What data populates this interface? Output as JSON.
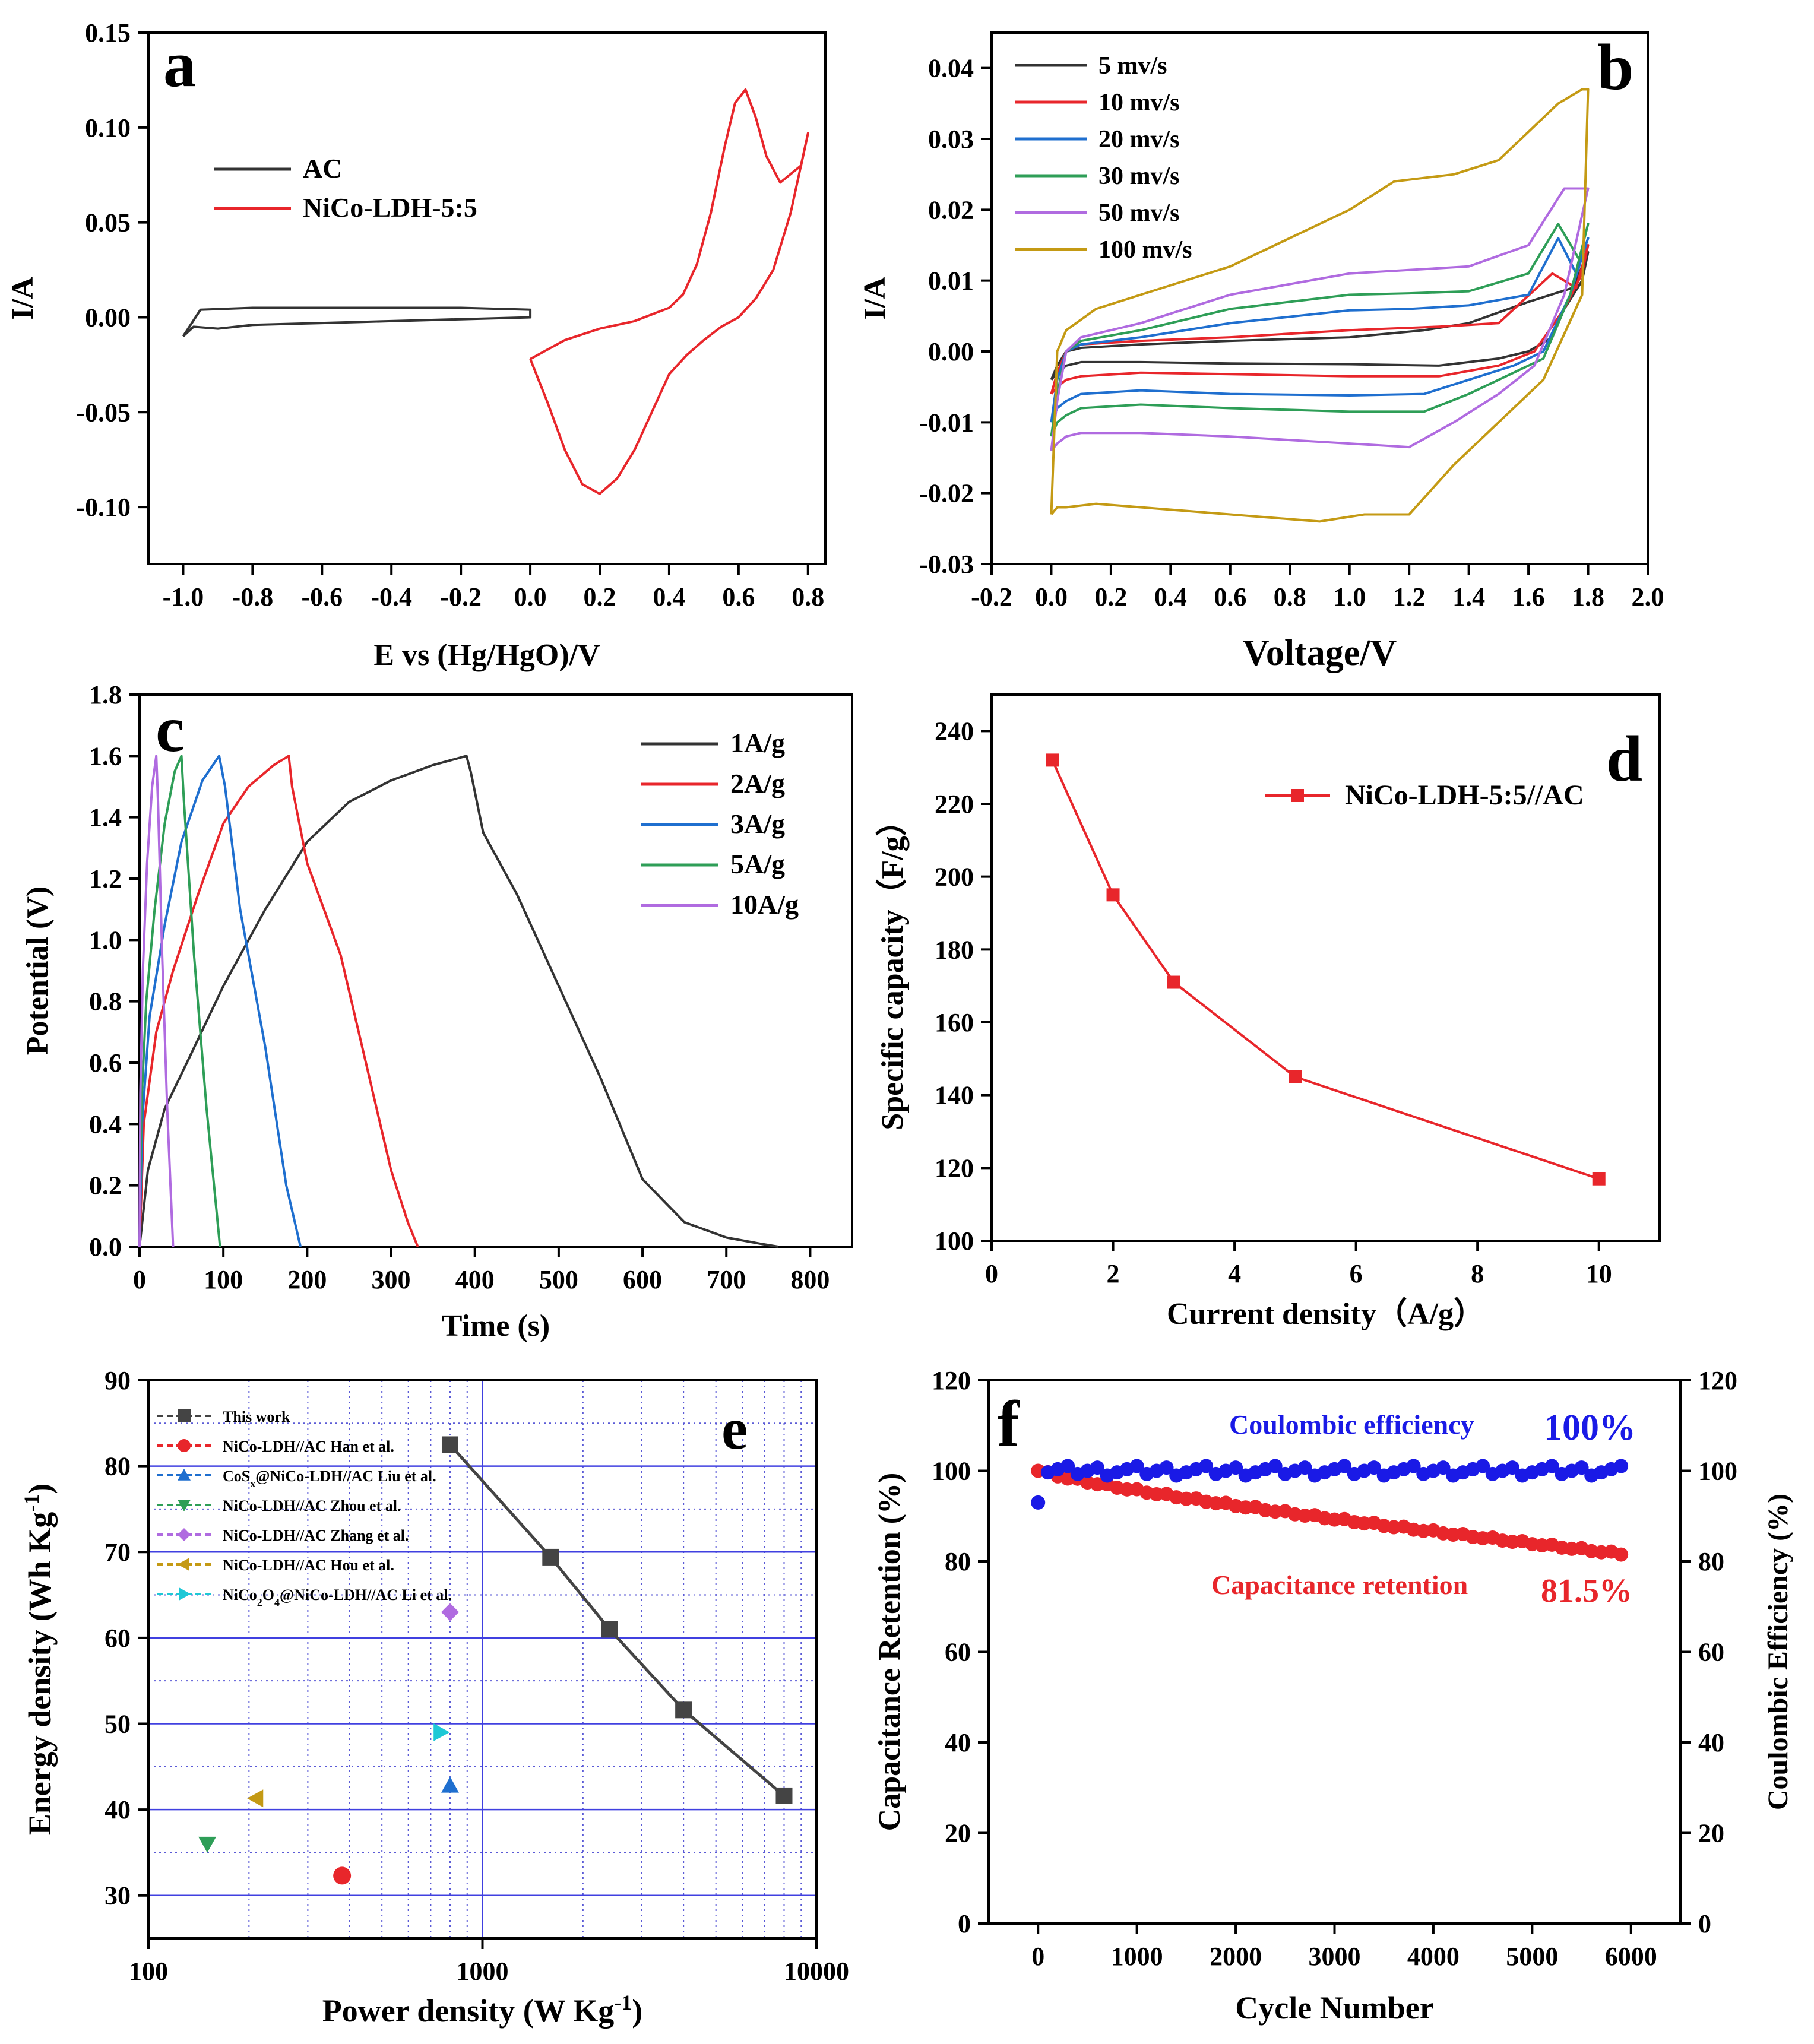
{
  "chart_data": [
    {
      "panel": "a",
      "type": "line",
      "title": "",
      "xlabel": "E vs (Hg/HgO)/V",
      "ylabel": "I/A",
      "xlim": [
        -1.1,
        0.85
      ],
      "ylim": [
        -0.13,
        0.15
      ],
      "xticks": [
        -1.0,
        -0.8,
        -0.6,
        -0.4,
        -0.2,
        0.0,
        0.2,
        0.4,
        0.6,
        0.8
      ],
      "xtick_labels": [
        "-1.0",
        "-0.8",
        "-0.6",
        "-0.4",
        "-0.2",
        "0.0",
        "0.2",
        "0.4",
        "0.6",
        "0.8"
      ],
      "yticks": [
        -0.1,
        -0.05,
        0.0,
        0.05,
        0.1,
        0.15
      ],
      "ytick_labels": [
        "-0.10",
        "-0.05",
        "0.00",
        "0.05",
        "0.10",
        "0.15"
      ],
      "legend_position": "upper-left",
      "series": [
        {
          "name": "AC",
          "color": "#333333",
          "x": [
            -1.0,
            -0.97,
            -0.9,
            -0.8,
            -0.6,
            -0.4,
            -0.2,
            0.0,
            0.0,
            -0.2,
            -0.4,
            -0.6,
            -0.8,
            -0.95,
            -1.0
          ],
          "y": [
            -0.01,
            -0.005,
            -0.006,
            -0.004,
            -0.003,
            -0.002,
            -0.001,
            0.0,
            0.004,
            0.005,
            0.005,
            0.005,
            0.005,
            0.004,
            -0.01
          ]
        },
        {
          "name": "NiCo-LDH-5:5",
          "color": "#e8262b",
          "x": [
            0.0,
            0.05,
            0.1,
            0.15,
            0.2,
            0.25,
            0.3,
            0.35,
            0.4,
            0.45,
            0.5,
            0.55,
            0.6,
            0.65,
            0.7,
            0.75,
            0.8,
            0.78,
            0.72,
            0.68,
            0.65,
            0.62,
            0.59,
            0.56,
            0.52,
            0.48,
            0.44,
            0.4,
            0.3,
            0.2,
            0.1,
            0.0
          ],
          "y": [
            -0.022,
            -0.045,
            -0.07,
            -0.088,
            -0.093,
            -0.085,
            -0.07,
            -0.05,
            -0.03,
            -0.02,
            -0.012,
            -0.005,
            0.0,
            0.01,
            0.025,
            0.055,
            0.097,
            0.08,
            0.071,
            0.085,
            0.105,
            0.12,
            0.113,
            0.09,
            0.055,
            0.028,
            0.012,
            0.005,
            -0.002,
            -0.006,
            -0.012,
            -0.022
          ]
        }
      ],
      "annotation": "a"
    },
    {
      "panel": "b",
      "type": "line",
      "xlabel": "Voltage/V",
      "ylabel": "I/A",
      "xlim": [
        -0.2,
        2.0
      ],
      "ylim": [
        -0.03,
        0.045
      ],
      "xticks": [
        -0.2,
        0.0,
        0.2,
        0.4,
        0.6,
        0.8,
        1.0,
        1.2,
        1.4,
        1.6,
        1.8,
        2.0
      ],
      "xtick_labels": [
        "-0.2",
        "0.0",
        "0.2",
        "0.4",
        "0.6",
        "0.8",
        "1.0",
        "1.2",
        "1.4",
        "1.6",
        "1.8",
        "2.0"
      ],
      "yticks": [
        -0.03,
        -0.02,
        -0.01,
        0.0,
        0.01,
        0.02,
        0.03,
        0.04
      ],
      "ytick_labels": [
        "-0.03",
        "-0.02",
        "-0.01",
        "0.00",
        "0.01",
        "0.02",
        "0.03",
        "0.04"
      ],
      "legend_position": "upper-left",
      "series": [
        {
          "name": "5 mv/s",
          "color": "#333333",
          "x": [
            0.0,
            0.02,
            0.05,
            0.1,
            0.3,
            0.6,
            1.0,
            1.3,
            1.5,
            1.6,
            1.68,
            1.72,
            1.78,
            1.8,
            1.75,
            1.6,
            1.4,
            1.25,
            1.0,
            0.6,
            0.3,
            0.1,
            0.05,
            0.02,
            0.0
          ],
          "y": [
            -0.004,
            -0.003,
            -0.002,
            -0.0015,
            -0.0015,
            -0.0017,
            -0.0018,
            -0.002,
            -0.001,
            0.0,
            0.002,
            0.006,
            0.01,
            0.014,
            0.009,
            0.007,
            0.004,
            0.003,
            0.002,
            0.0015,
            0.001,
            0.0005,
            0.0,
            -0.002,
            -0.004
          ]
        },
        {
          "name": "10 mv/s",
          "color": "#e8262b",
          "x": [
            0.0,
            0.02,
            0.05,
            0.1,
            0.3,
            0.6,
            1.0,
            1.3,
            1.5,
            1.62,
            1.72,
            1.78,
            1.8,
            1.76,
            1.68,
            1.5,
            1.3,
            1.0,
            0.6,
            0.3,
            0.1,
            0.05,
            0.02,
            0.0
          ],
          "y": [
            -0.006,
            -0.005,
            -0.004,
            -0.0035,
            -0.003,
            -0.0032,
            -0.0035,
            -0.0035,
            -0.002,
            0.0,
            0.006,
            0.011,
            0.015,
            0.009,
            0.011,
            0.004,
            0.0035,
            0.003,
            0.002,
            0.0015,
            0.001,
            0.0,
            -0.003,
            -0.006
          ]
        },
        {
          "name": "20 mv/s",
          "color": "#1f6fcf",
          "x": [
            0.0,
            0.02,
            0.05,
            0.1,
            0.3,
            0.6,
            1.0,
            1.25,
            1.4,
            1.55,
            1.65,
            1.74,
            1.8,
            1.76,
            1.7,
            1.6,
            1.4,
            1.2,
            1.0,
            0.6,
            0.3,
            0.1,
            0.05,
            0.02,
            0.0
          ],
          "y": [
            -0.01,
            -0.008,
            -0.007,
            -0.006,
            -0.0055,
            -0.006,
            -0.0062,
            -0.006,
            -0.004,
            -0.002,
            0.0,
            0.008,
            0.016,
            0.011,
            0.016,
            0.008,
            0.0065,
            0.006,
            0.0058,
            0.004,
            0.002,
            0.001,
            0.0,
            -0.004,
            -0.01
          ]
        },
        {
          "name": "30 mv/s",
          "color": "#2e9e57",
          "x": [
            0.0,
            0.02,
            0.05,
            0.1,
            0.3,
            0.6,
            1.0,
            1.25,
            1.4,
            1.55,
            1.65,
            1.74,
            1.8,
            1.77,
            1.7,
            1.6,
            1.4,
            1.2,
            1.0,
            0.6,
            0.3,
            0.1,
            0.05,
            0.02,
            0.0
          ],
          "y": [
            -0.012,
            -0.01,
            -0.009,
            -0.008,
            -0.0075,
            -0.008,
            -0.0085,
            -0.0085,
            -0.006,
            -0.003,
            -0.001,
            0.008,
            0.018,
            0.013,
            0.018,
            0.011,
            0.0085,
            0.0082,
            0.008,
            0.006,
            0.003,
            0.0015,
            0.0,
            -0.006,
            -0.012
          ]
        },
        {
          "name": "50 mv/s",
          "color": "#b06be0",
          "x": [
            0.0,
            0.02,
            0.05,
            0.1,
            0.3,
            0.6,
            1.0,
            1.2,
            1.35,
            1.5,
            1.62,
            1.72,
            1.8,
            1.78,
            1.72,
            1.6,
            1.4,
            1.2,
            1.0,
            0.6,
            0.3,
            0.1,
            0.05,
            0.02,
            0.0
          ],
          "y": [
            -0.014,
            -0.013,
            -0.012,
            -0.0115,
            -0.0115,
            -0.012,
            -0.013,
            -0.0135,
            -0.01,
            -0.006,
            -0.002,
            0.008,
            0.023,
            0.023,
            0.023,
            0.015,
            0.012,
            0.0115,
            0.011,
            0.008,
            0.004,
            0.002,
            0.0,
            -0.007,
            -0.014
          ]
        },
        {
          "name": "100 mv/s",
          "color": "#c49a14",
          "x": [
            0.0,
            0.02,
            0.05,
            0.15,
            0.3,
            0.6,
            0.9,
            1.05,
            1.2,
            1.35,
            1.5,
            1.65,
            1.78,
            1.8,
            1.78,
            1.7,
            1.5,
            1.35,
            1.15,
            1.0,
            0.6,
            0.3,
            0.15,
            0.05,
            0.02,
            0.0
          ],
          "y": [
            -0.023,
            -0.022,
            -0.022,
            -0.0215,
            -0.022,
            -0.023,
            -0.024,
            -0.023,
            -0.023,
            -0.016,
            -0.01,
            -0.004,
            0.008,
            0.037,
            0.037,
            0.035,
            0.027,
            0.025,
            0.024,
            0.02,
            0.012,
            0.008,
            0.006,
            0.003,
            0.0,
            -0.023
          ]
        }
      ],
      "annotation": "b"
    },
    {
      "panel": "c",
      "type": "line",
      "xlabel": "Time (s)",
      "ylabel": "Potential (V)",
      "xlim": [
        0,
        850
      ],
      "ylim": [
        0.0,
        1.8
      ],
      "xticks": [
        0,
        100,
        200,
        300,
        400,
        500,
        600,
        700,
        800
      ],
      "xtick_labels": [
        "0",
        "100",
        "200",
        "300",
        "400",
        "500",
        "600",
        "700",
        "800"
      ],
      "yticks": [
        0.0,
        0.2,
        0.4,
        0.6,
        0.8,
        1.0,
        1.2,
        1.4,
        1.6,
        1.8
      ],
      "ytick_labels": [
        "0.0",
        "0.2",
        "0.4",
        "0.6",
        "0.8",
        "1.0",
        "1.2",
        "1.4",
        "1.6",
        "1.8"
      ],
      "legend_position": "upper-right",
      "series": [
        {
          "name": "1A/g",
          "color": "#333333",
          "x": [
            0,
            10,
            30,
            60,
            100,
            150,
            200,
            250,
            300,
            350,
            390,
            395,
            410,
            450,
            500,
            550,
            600,
            650,
            700,
            740,
            762
          ],
          "y": [
            0.0,
            0.25,
            0.45,
            0.62,
            0.85,
            1.1,
            1.32,
            1.45,
            1.52,
            1.57,
            1.6,
            1.55,
            1.35,
            1.15,
            0.85,
            0.55,
            0.22,
            0.08,
            0.03,
            0.01,
            0.0
          ]
        },
        {
          "name": "2A/g",
          "color": "#e8262b",
          "x": [
            0,
            5,
            20,
            40,
            70,
            100,
            130,
            160,
            178,
            182,
            200,
            240,
            270,
            300,
            320,
            332
          ],
          "y": [
            0.0,
            0.4,
            0.7,
            0.9,
            1.15,
            1.38,
            1.5,
            1.57,
            1.6,
            1.5,
            1.25,
            0.95,
            0.6,
            0.25,
            0.08,
            0.0
          ]
        },
        {
          "name": "3A/g",
          "color": "#1f6fcf",
          "x": [
            0,
            3,
            12,
            30,
            50,
            75,
            95,
            102,
            120,
            150,
            175,
            192
          ],
          "y": [
            0.0,
            0.4,
            0.75,
            1.05,
            1.32,
            1.52,
            1.6,
            1.5,
            1.1,
            0.65,
            0.2,
            0.0
          ]
        },
        {
          "name": "5A/g",
          "color": "#2e9e57",
          "x": [
            0,
            2,
            8,
            18,
            30,
            42,
            50,
            53,
            65,
            80,
            96
          ],
          "y": [
            0.0,
            0.45,
            0.8,
            1.1,
            1.38,
            1.55,
            1.6,
            1.45,
            0.95,
            0.45,
            0.0
          ]
        },
        {
          "name": "10A/g",
          "color": "#b06be0",
          "x": [
            0,
            1,
            4,
            9,
            15,
            20,
            22,
            27,
            33,
            40
          ],
          "y": [
            0.0,
            0.5,
            0.9,
            1.25,
            1.5,
            1.6,
            1.45,
            0.95,
            0.45,
            0.0
          ]
        }
      ],
      "annotation": "c"
    },
    {
      "panel": "d",
      "type": "line",
      "xlabel": "Current density（A/g）",
      "ylabel": "Specific capacity（F/g）",
      "xlim": [
        0,
        11
      ],
      "ylim": [
        100,
        250
      ],
      "xticks": [
        0,
        2,
        4,
        6,
        8,
        10
      ],
      "xtick_labels": [
        "0",
        "2",
        "4",
        "6",
        "8",
        "10"
      ],
      "yticks": [
        100,
        120,
        140,
        160,
        180,
        200,
        220,
        240
      ],
      "ytick_labels": [
        "100",
        "120",
        "140",
        "160",
        "180",
        "200",
        "220",
        "240"
      ],
      "legend_position": "upper-right",
      "series": [
        {
          "name": "NiCo-LDH-5:5//AC",
          "color": "#e8262b",
          "marker": "square",
          "x": [
            1,
            2,
            3,
            5,
            10
          ],
          "y": [
            232,
            195,
            171,
            145,
            117
          ]
        }
      ],
      "annotation": "d"
    },
    {
      "panel": "e",
      "type": "scatter",
      "xlabel": "Power density (W Kg",
      "xlabel_sup": "-1",
      "xlabel_tail": ")",
      "ylabel": "Energy density (Wh Kg",
      "ylabel_sup": "-1",
      "ylabel_tail": ")",
      "xscale": "log",
      "xlim": [
        100,
        10000
      ],
      "ylim": [
        25,
        90
      ],
      "xticks": [
        100,
        1000,
        10000
      ],
      "xtick_labels": [
        "100",
        "1000",
        "10000"
      ],
      "yticks": [
        30,
        40,
        50,
        60,
        70,
        80,
        90
      ],
      "ytick_labels": [
        "30",
        "40",
        "50",
        "60",
        "70",
        "80",
        "90"
      ],
      "legend_position": "upper-left",
      "series": [
        {
          "name": "This work",
          "color": "#444444",
          "marker": "square",
          "line": true,
          "x": [
            800,
            1600,
            2400,
            4000,
            8000
          ],
          "y": [
            82.5,
            69.4,
            61.0,
            51.6,
            41.6
          ]
        },
        {
          "name": "NiCo-LDH//AC  Han et al.",
          "color": "#e8262b",
          "marker": "circle",
          "x": [
            380
          ],
          "y": [
            32.3
          ]
        },
        {
          "name": "CoS",
          "name_sub": "x",
          "name_tail": "@NiCo-LDH//AC  Liu et al.",
          "color": "#1f6fcf",
          "marker": "triangle-up",
          "x": [
            800
          ],
          "y": [
            42.8
          ]
        },
        {
          "name": "NiCo-LDH//AC  Zhou et al.",
          "color": "#2e9e57",
          "marker": "triangle-down",
          "x": [
            150
          ],
          "y": [
            36.0
          ]
        },
        {
          "name": "NiCo-LDH//AC  Zhang et al.",
          "color": "#b06be0",
          "marker": "diamond",
          "x": [
            800
          ],
          "y": [
            63.0
          ]
        },
        {
          "name": "NiCo-LDH//AC  Hou et al.",
          "color": "#c49a14",
          "marker": "triangle-left",
          "x": [
            210
          ],
          "y": [
            41.3
          ]
        },
        {
          "name": "NiCo",
          "name_sub": "2",
          "name_mid": "O",
          "name_sub2": "4",
          "name_tail": "@NiCo-LDH//AC Li et al.",
          "color": "#1ec8d6",
          "marker": "triangle-right",
          "x": [
            750
          ],
          "y": [
            49.0
          ]
        }
      ],
      "annotation": "e"
    },
    {
      "panel": "f",
      "type": "scatter",
      "xlabel": "Cycle Number",
      "ylabel": "Capacitance Retention (%)",
      "ylabel_right": "Coulombic Efficiency (%)",
      "xlim": [
        -500,
        6500
      ],
      "ylim": [
        0,
        120
      ],
      "xticks": [
        0,
        1000,
        2000,
        3000,
        4000,
        5000,
        6000
      ],
      "xtick_labels": [
        "0",
        "1000",
        "2000",
        "3000",
        "4000",
        "5000",
        "6000"
      ],
      "yticks": [
        0,
        20,
        40,
        60,
        80,
        100,
        120
      ],
      "ytick_labels": [
        "0",
        "20",
        "40",
        "60",
        "80",
        "100",
        "120"
      ],
      "annotations_text": {
        "ce_label": "Coulombic efficiency",
        "ce_value": "100%",
        "cr_label": "Capacitance retention",
        "cr_value": "81.5%"
      },
      "series": [
        {
          "name": "Coulombic efficiency",
          "color": "#1a1ae6",
          "axis": "right",
          "x_start": 0,
          "x_step": 100,
          "count": 60,
          "first_value": 93,
          "steady_value": 100
        },
        {
          "name": "Capacitance retention",
          "color": "#e8262b",
          "axis": "left",
          "x_start": 0,
          "x_step": 100,
          "count": 60,
          "start_value": 100,
          "end_value": 81.5
        }
      ],
      "annotation": "f"
    }
  ]
}
